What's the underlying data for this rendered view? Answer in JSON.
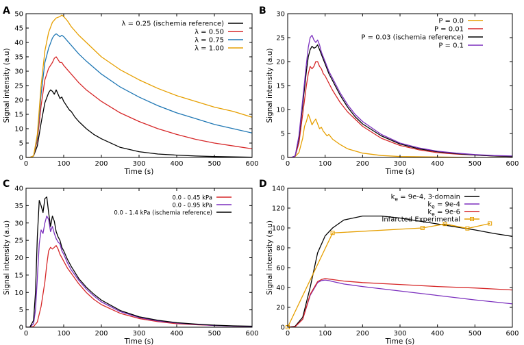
{
  "chart_data": [
    {
      "panel": "A",
      "type": "line",
      "xlabel": "Time (s)",
      "ylabel": "Signal intensity (a.u)",
      "xlim": [
        0,
        600
      ],
      "ylim": [
        0,
        50
      ],
      "xticks": [
        0,
        100,
        200,
        300,
        400,
        500,
        600
      ],
      "yticks": [
        0,
        5,
        10,
        15,
        20,
        25,
        30,
        35,
        40,
        45,
        50
      ],
      "legend_position": "top-right",
      "series": [
        {
          "name": "λ = 0.25 (ischemia reference)",
          "color": "#000000",
          "x": [
            0,
            10,
            20,
            30,
            40,
            50,
            60,
            65,
            70,
            75,
            80,
            85,
            90,
            95,
            100,
            105,
            110,
            115,
            120,
            130,
            140,
            160,
            180,
            200,
            250,
            300,
            350,
            400,
            450,
            500,
            550,
            600
          ],
          "y": [
            0,
            0,
            0.5,
            4,
            12,
            19,
            22.5,
            23.5,
            23,
            22,
            23.5,
            22,
            20.5,
            21,
            19.5,
            18.5,
            17.5,
            16.5,
            16,
            14,
            12.5,
            10,
            8,
            6.5,
            3.5,
            2,
            1.2,
            0.8,
            0.5,
            0.3,
            0.2,
            0.1
          ]
        },
        {
          "name": "λ = 0.50",
          "color": "#d62728",
          "x": [
            0,
            10,
            20,
            30,
            40,
            50,
            60,
            70,
            75,
            80,
            85,
            90,
            95,
            100,
            110,
            120,
            140,
            160,
            200,
            250,
            300,
            350,
            400,
            450,
            500,
            550,
            600
          ],
          "y": [
            0,
            0,
            0.5,
            6,
            18,
            27,
            31,
            33,
            34.5,
            35,
            34,
            33,
            33,
            32,
            30.5,
            29,
            26,
            23.5,
            19.5,
            15.5,
            12.5,
            10,
            8,
            6.3,
            5,
            4,
            3
          ]
        },
        {
          "name": "λ = 0.75",
          "color": "#1f77b4",
          "x": [
            0,
            10,
            20,
            30,
            40,
            50,
            60,
            70,
            75,
            80,
            85,
            90,
            95,
            100,
            110,
            120,
            140,
            160,
            200,
            250,
            300,
            350,
            400,
            450,
            500,
            550,
            600
          ],
          "y": [
            0,
            0,
            0.5,
            7,
            22,
            33,
            38,
            41.5,
            42.5,
            43,
            42.5,
            42,
            42.5,
            42,
            40.5,
            39,
            36,
            33.5,
            29,
            24.5,
            21,
            18,
            15.5,
            13.5,
            11.5,
            10,
            8.5
          ]
        },
        {
          "name": "λ = 1.00",
          "color": "#e69f00",
          "x": [
            0,
            10,
            20,
            30,
            40,
            50,
            60,
            70,
            80,
            90,
            95,
            100,
            110,
            120,
            140,
            160,
            200,
            250,
            300,
            350,
            400,
            450,
            500,
            550,
            600
          ],
          "y": [
            0,
            0,
            0.5,
            8,
            25,
            37,
            43.5,
            47,
            48.5,
            49,
            49.5,
            49,
            47.5,
            45.5,
            42.5,
            40,
            35,
            30.5,
            27,
            24,
            21.5,
            19.5,
            17.5,
            16,
            14
          ]
        }
      ]
    },
    {
      "panel": "B",
      "type": "line",
      "xlabel": "Time (s)",
      "ylabel": "Signal intensity (a.u)",
      "xlim": [
        0,
        600
      ],
      "ylim": [
        0,
        30
      ],
      "xticks": [
        0,
        100,
        200,
        300,
        400,
        500,
        600
      ],
      "yticks": [
        0,
        5,
        10,
        15,
        20,
        25,
        30
      ],
      "legend_position": "top-right",
      "series": [
        {
          "name": "P = 0.0",
          "color": "#e69f00",
          "x": [
            0,
            10,
            20,
            30,
            40,
            45,
            50,
            55,
            60,
            65,
            70,
            75,
            80,
            85,
            90,
            95,
            100,
            105,
            110,
            120,
            140,
            160,
            200,
            250,
            300,
            400,
            500,
            600
          ],
          "y": [
            0,
            0,
            0.2,
            1,
            4,
            6.5,
            7.5,
            9,
            8,
            6.8,
            7.5,
            8,
            7,
            6,
            6.3,
            5.5,
            5,
            4.5,
            4.8,
            3.8,
            2.7,
            1.8,
            0.9,
            0.4,
            0.2,
            0.1,
            0,
            0
          ]
        },
        {
          "name": "P = 0.01",
          "color": "#d62728",
          "x": [
            0,
            10,
            20,
            30,
            40,
            50,
            55,
            60,
            65,
            70,
            75,
            80,
            85,
            90,
            95,
            100,
            110,
            120,
            140,
            160,
            180,
            200,
            250,
            300,
            350,
            400,
            450,
            500,
            550,
            600
          ],
          "y": [
            0,
            0,
            0.3,
            3,
            9,
            15,
            17.5,
            19,
            18.5,
            19,
            20,
            20,
            19,
            18.5,
            17.5,
            17,
            15.5,
            14,
            11.5,
            9.5,
            8,
            6.5,
            4,
            2.5,
            1.6,
            1,
            0.7,
            0.5,
            0.3,
            0.2
          ]
        },
        {
          "name": "P = 0.03 (ischemia reference)",
          "color": "#000000",
          "x": [
            0,
            10,
            20,
            30,
            40,
            50,
            55,
            60,
            65,
            70,
            75,
            80,
            85,
            90,
            95,
            100,
            110,
            120,
            140,
            160,
            180,
            200,
            250,
            300,
            350,
            400,
            450,
            500,
            550,
            600
          ],
          "y": [
            0,
            0,
            0.3,
            4,
            11,
            18,
            21,
            22.5,
            23.2,
            22.8,
            23,
            23.5,
            22.5,
            21.5,
            20.5,
            19.5,
            17.5,
            16,
            13,
            10.5,
            8.5,
            7,
            4.5,
            2.8,
            1.8,
            1.2,
            0.8,
            0.5,
            0.3,
            0.2
          ]
        },
        {
          "name": "P = 0.1",
          "color": "#7b2fbe",
          "x": [
            0,
            10,
            20,
            30,
            40,
            50,
            55,
            60,
            65,
            70,
            75,
            80,
            85,
            90,
            95,
            100,
            110,
            120,
            140,
            160,
            180,
            200,
            250,
            300,
            350,
            400,
            450,
            500,
            550,
            600
          ],
          "y": [
            0,
            0,
            0.3,
            4.5,
            12,
            19.5,
            23,
            25,
            25.5,
            24.5,
            24,
            24.5,
            23.5,
            22,
            21,
            20,
            18,
            16.5,
            13.5,
            11,
            9,
            7.5,
            4.8,
            3,
            2,
            1.3,
            0.9,
            0.6,
            0.4,
            0.3
          ]
        }
      ]
    },
    {
      "panel": "C",
      "type": "line",
      "xlabel": "Time (s)",
      "ylabel": "Signal intensity (a.u)",
      "xlim": [
        0,
        600
      ],
      "ylim": [
        0,
        40
      ],
      "xticks": [
        0,
        100,
        200,
        300,
        400,
        500,
        600
      ],
      "yticks": [
        0,
        5,
        10,
        15,
        20,
        25,
        30,
        35,
        40
      ],
      "legend_position": "top-right",
      "series": [
        {
          "name": "0.0 - 0.45 kPa",
          "color": "#d62728",
          "x": [
            0,
            10,
            20,
            30,
            40,
            50,
            55,
            60,
            65,
            70,
            75,
            80,
            85,
            90,
            95,
            100,
            110,
            120,
            140,
            160,
            180,
            200,
            250,
            300,
            350,
            400,
            450,
            500,
            550,
            600
          ],
          "y": [
            0,
            0,
            0.2,
            1.5,
            6,
            13,
            18,
            22,
            23,
            22.5,
            23,
            23.5,
            22.5,
            21,
            20,
            19,
            17,
            15.5,
            12.5,
            10,
            8,
            6.5,
            4,
            2.5,
            1.6,
            1,
            0.7,
            0.5,
            0.3,
            0.2
          ]
        },
        {
          "name": "0.0 - 0.95 kPa",
          "color": "#7b2fbe",
          "x": [
            0,
            10,
            20,
            25,
            30,
            35,
            40,
            45,
            50,
            55,
            60,
            65,
            70,
            75,
            80,
            85,
            90,
            95,
            100,
            110,
            120,
            140,
            160,
            180,
            200,
            250,
            300,
            350,
            400,
            450,
            500,
            550,
            600
          ],
          "y": [
            0,
            0,
            1,
            5,
            14,
            24,
            28,
            27,
            30,
            32,
            31,
            27.5,
            29,
            27,
            25.5,
            24.5,
            24,
            22,
            21,
            18.5,
            16.5,
            13.5,
            11,
            9,
            7.3,
            4.5,
            2.8,
            1.8,
            1.2,
            0.8,
            0.5,
            0.3,
            0.2
          ]
        },
        {
          "name": "0.0 - 1.4 kPa (ischemia reference)",
          "color": "#000000",
          "x": [
            0,
            10,
            20,
            25,
            30,
            35,
            40,
            45,
            50,
            55,
            60,
            65,
            70,
            75,
            80,
            85,
            90,
            95,
            100,
            110,
            120,
            140,
            160,
            180,
            200,
            250,
            300,
            350,
            400,
            450,
            500,
            550,
            600
          ],
          "y": [
            0,
            0,
            2,
            10,
            26,
            36.5,
            35,
            33,
            37,
            37.5,
            33,
            29,
            32,
            30.5,
            27.5,
            26,
            25,
            23,
            22,
            19.5,
            17.5,
            14,
            11.5,
            9.5,
            7.8,
            4.8,
            3,
            2,
            1.3,
            0.9,
            0.6,
            0.4,
            0.3
          ]
        }
      ]
    },
    {
      "panel": "D",
      "type": "line",
      "xlabel": "Time (s)",
      "ylabel": "Signal intensity (a.u)",
      "xlim": [
        0,
        600
      ],
      "ylim": [
        0,
        140
      ],
      "xticks": [
        0,
        100,
        200,
        300,
        400,
        500,
        600
      ],
      "yticks": [
        0,
        20,
        40,
        60,
        80,
        100,
        120,
        140
      ],
      "legend_position": "top-right",
      "series": [
        {
          "name": "k",
          "sub": "e",
          "suffix": " = 9e-4, 3-domain",
          "color": "#000000",
          "x": [
            0,
            20,
            40,
            60,
            80,
            100,
            120,
            150,
            200,
            250,
            300,
            350,
            400,
            450,
            500,
            550,
            600
          ],
          "y": [
            0,
            1,
            10,
            40,
            75,
            92,
            100,
            108,
            112,
            112,
            110,
            107,
            104,
            101,
            98,
            94.5,
            91.5
          ]
        },
        {
          "name": "k",
          "sub": "e",
          "suffix": " = 9e-4",
          "color": "#7b2fbe",
          "x": [
            0,
            20,
            40,
            60,
            80,
            90,
            100,
            110,
            120,
            150,
            200,
            300,
            400,
            500,
            600
          ],
          "y": [
            0,
            0.5,
            8,
            32,
            45,
            47,
            47.5,
            47,
            46,
            43.5,
            41,
            36.5,
            32,
            27.5,
            23.5
          ]
        },
        {
          "name": "k",
          "sub": "e",
          "suffix": " = 9e-6",
          "color": "#d62728",
          "x": [
            0,
            20,
            40,
            60,
            80,
            90,
            100,
            110,
            120,
            150,
            200,
            300,
            400,
            500,
            600
          ],
          "y": [
            0,
            0.5,
            8,
            33,
            46,
            48,
            49,
            48.5,
            48,
            46.5,
            45,
            43,
            41,
            39.5,
            37.5
          ]
        },
        {
          "name": "Infarcted Experimental",
          "color": "#e69f00",
          "markers": true,
          "x": [
            0,
            120,
            360,
            420,
            480,
            540
          ],
          "y": [
            0,
            95,
            100,
            104,
            99.5,
            104.5
          ]
        }
      ]
    }
  ],
  "panel_labels": [
    "A",
    "B",
    "C",
    "D"
  ]
}
